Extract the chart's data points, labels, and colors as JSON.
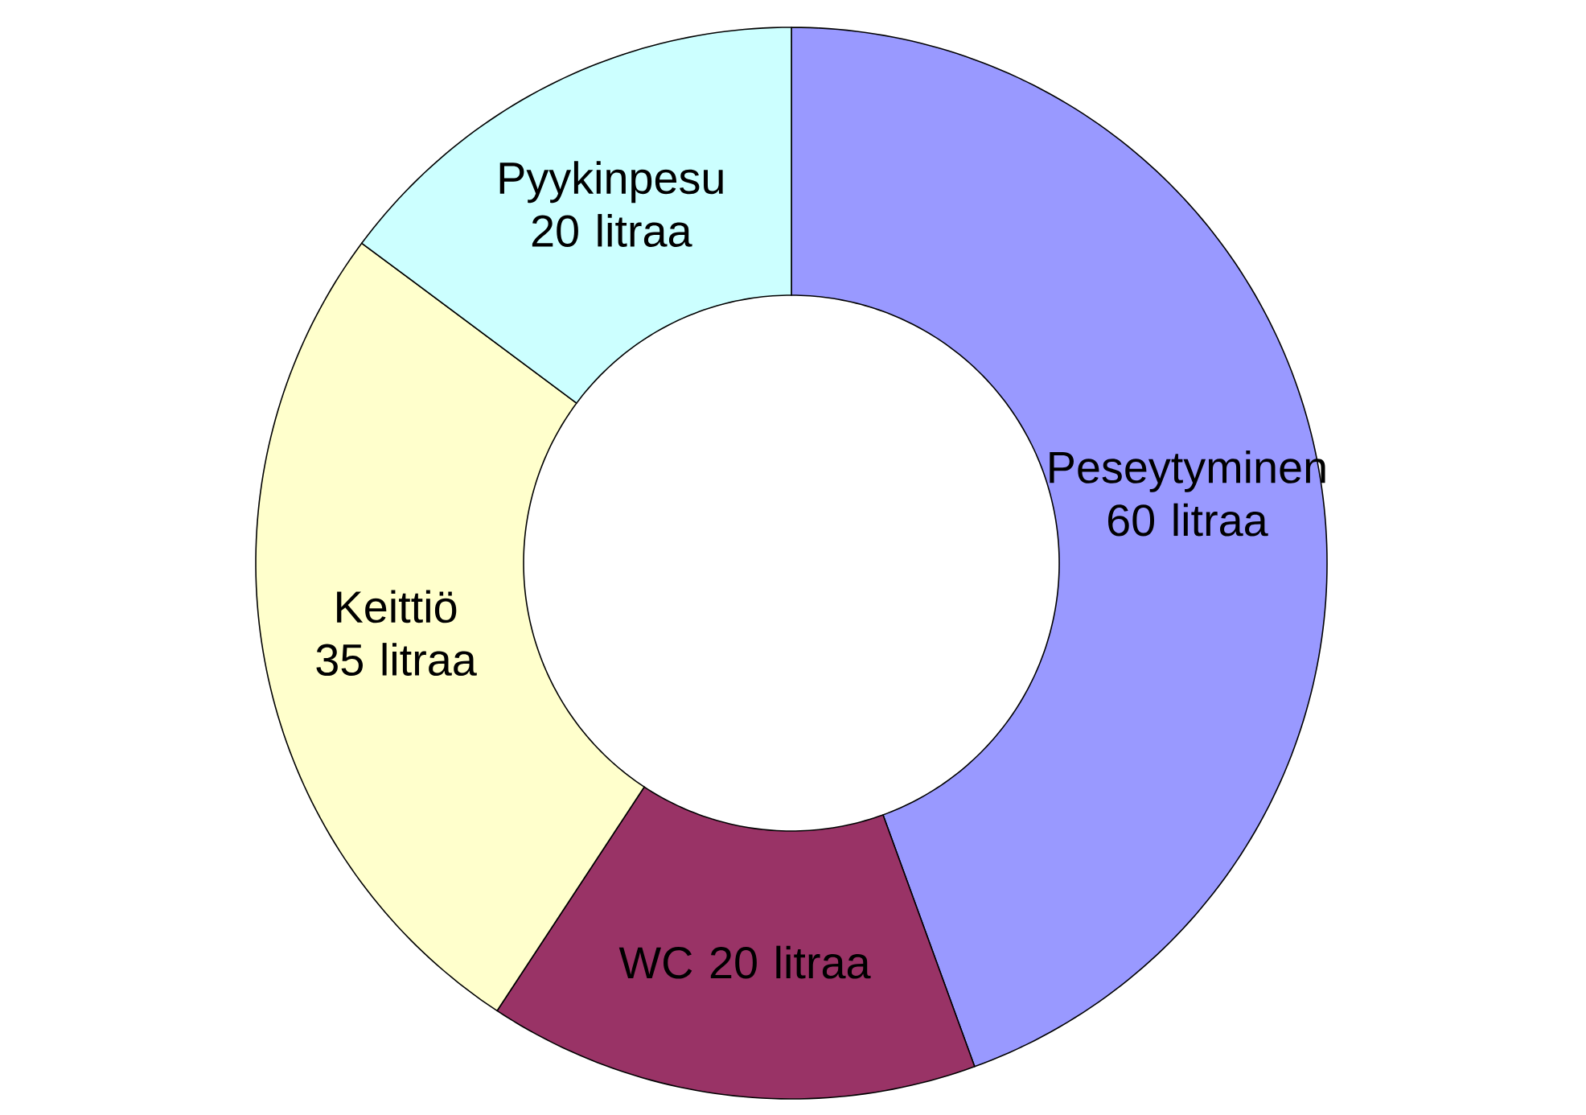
{
  "chart_data": {
    "type": "donut",
    "categories": [
      "Peseytyminen",
      "WC",
      "Keittiö",
      "Pyykinpesu"
    ],
    "values": [
      60,
      20,
      35,
      20
    ],
    "colors": [
      "#9999ff",
      "#993366",
      "#ffffcc",
      "#ccffff"
    ],
    "value_labels": [
      "60 litraa",
      "20 litraa",
      "35 litraa",
      "20 litraa"
    ]
  }
}
